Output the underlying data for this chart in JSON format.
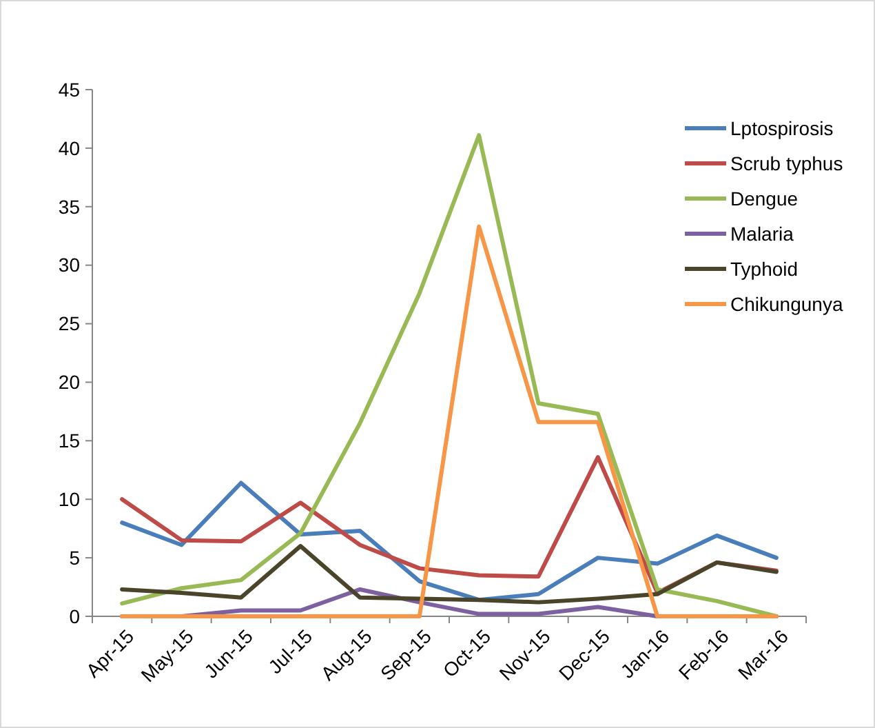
{
  "chart_data": {
    "type": "line",
    "categories": [
      "Apr-15",
      "May-15",
      "Jun-15",
      "Jul-15",
      "Aug-15",
      "Sep-15",
      "Oct-15",
      "Nov-15",
      "Dec-15",
      "Jan-16",
      "Feb-16",
      "Mar-16"
    ],
    "series": [
      {
        "name": "Lptospirosis",
        "color": "#4a7ebb",
        "values": [
          8,
          6.1,
          11.4,
          7,
          7.3,
          3,
          1.4,
          1.9,
          5,
          4.5,
          6.9,
          5
        ]
      },
      {
        "name": "Scrub typhus",
        "color": "#be4b48",
        "values": [
          10,
          6.5,
          6.4,
          9.7,
          6.1,
          4.1,
          3.5,
          3.4,
          13.6,
          2,
          4.6,
          3.9
        ]
      },
      {
        "name": "Dengue",
        "color": "#98b954",
        "values": [
          1.1,
          2.4,
          3.1,
          7.1,
          16.5,
          27.6,
          41.1,
          18.2,
          17.3,
          2.3,
          1.3,
          0
        ]
      },
      {
        "name": "Malaria",
        "color": "#7d60a0",
        "values": [
          0,
          0,
          0.5,
          0.5,
          2.3,
          1.2,
          0.2,
          0.2,
          0.8,
          0,
          0,
          0
        ]
      },
      {
        "name": "Typhoid",
        "color": "#4a452a",
        "values": [
          2.3,
          2,
          1.6,
          6,
          1.6,
          1.5,
          1.4,
          1.2,
          1.5,
          1.9,
          4.6,
          3.8
        ]
      },
      {
        "name": "Chikungunya",
        "color": "#f79646",
        "values": [
          0,
          0,
          0,
          0,
          0,
          0,
          33.3,
          16.6,
          16.6,
          0,
          0,
          0
        ]
      }
    ],
    "ylim": [
      0,
      45
    ],
    "yticks": [
      0,
      5,
      10,
      15,
      20,
      25,
      30,
      35,
      40,
      45
    ],
    "grid": false,
    "legend": "top right",
    "marker": "none",
    "line_style": "solid"
  }
}
